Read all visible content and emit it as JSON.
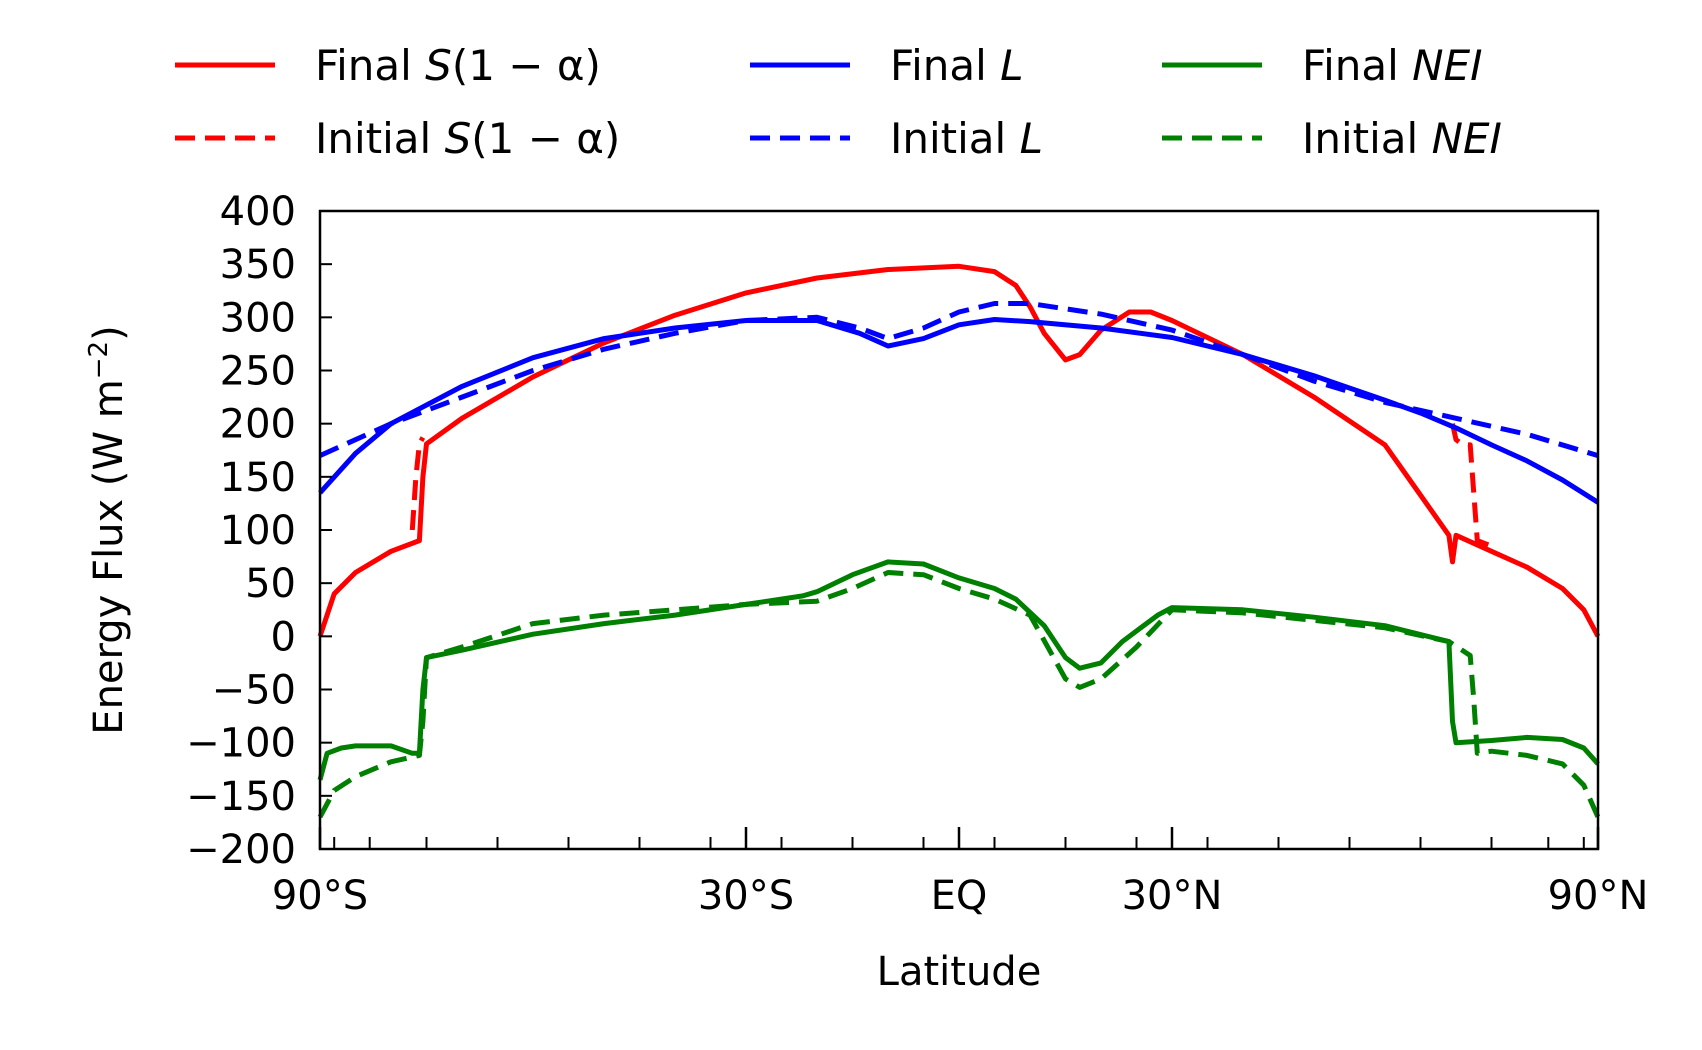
{
  "chart_data": {
    "type": "line",
    "title": "",
    "xlabel": "Latitude",
    "ylabel": "Energy Flux (W m",
    "ylabel_exp": "−2",
    "ylabel_end": ")",
    "xlim": [
      -90,
      90
    ],
    "ylim": [
      -200,
      400
    ],
    "x_ticklabels": [
      {
        "x": -90,
        "label": "90°S"
      },
      {
        "x": -30,
        "label": "30°S"
      },
      {
        "x": 0,
        "label": "EQ"
      },
      {
        "x": 30,
        "label": "30°N"
      },
      {
        "x": 90,
        "label": "90°N"
      }
    ],
    "y_ticks": [
      -200,
      -150,
      -100,
      -50,
      0,
      50,
      100,
      150,
      200,
      250,
      300,
      350,
      400
    ],
    "y_ticklabels": [
      "−200",
      "−150",
      "−100",
      "−50",
      "0",
      "50",
      "100",
      "150",
      "200",
      "250",
      "300",
      "350",
      "400"
    ],
    "legend_position": "top, above plot, 3 columns",
    "series": [
      {
        "name_plain": "Final ",
        "name_italic": "S",
        "name_rest": "(1 − α)",
        "color": "#ff0000",
        "dash": "solid",
        "x": [
          -90,
          -88,
          -85,
          -80,
          -76,
          -75.5,
          -75,
          -70,
          -60,
          -50,
          -40,
          -30,
          -20,
          -10,
          0,
          5,
          8,
          10,
          12,
          15,
          17,
          20,
          24,
          27,
          30,
          40,
          50,
          60,
          69,
          69.5,
          70,
          75,
          80,
          85,
          88,
          90
        ],
        "y": [
          0,
          40,
          60,
          80,
          90,
          150,
          181,
          205,
          244,
          276,
          302,
          323,
          337,
          345,
          348,
          343,
          330,
          310,
          285,
          260,
          265,
          288,
          305,
          305,
          297,
          265,
          225,
          180,
          95,
          70,
          95,
          80,
          65,
          45,
          25,
          0
        ]
      },
      {
        "name_plain": "Initial ",
        "name_italic": "S",
        "name_rest": "(1 − α)",
        "color": "#ff0000",
        "dash": "dashed",
        "x": [
          -77,
          -76.5,
          -76,
          -75.5
        ],
        "y": [
          100,
          150,
          181,
          187
        ],
        "x2": [
          69.5,
          70,
          71,
          72,
          73,
          75
        ],
        "y2": [
          200,
          185,
          180,
          180,
          90,
          85
        ]
      },
      {
        "name_plain": "Final ",
        "name_italic": "L",
        "name_rest": "",
        "color": "#0000ff",
        "dash": "solid",
        "x": [
          -90,
          -85,
          -80,
          -70,
          -60,
          -50,
          -40,
          -30,
          -20,
          -14,
          -10,
          -5,
          0,
          5,
          10,
          20,
          30,
          40,
          50,
          60,
          65,
          70,
          75,
          80,
          85,
          90
        ],
        "y": [
          135,
          172,
          200,
          235,
          262,
          280,
          290,
          297,
          297,
          285,
          273,
          280,
          293,
          298,
          296,
          290,
          281,
          265,
          245,
          222,
          210,
          196,
          180,
          165,
          147,
          126
        ]
      },
      {
        "name_plain": "Initial ",
        "name_italic": "L",
        "name_rest": "",
        "color": "#0000ff",
        "dash": "dashed",
        "x": [
          -90,
          -80,
          -70,
          -60,
          -50,
          -40,
          -30,
          -20,
          -14,
          -10,
          -5,
          0,
          5,
          10,
          20,
          30,
          40,
          50,
          60,
          70,
          80,
          90
        ],
        "y": [
          170,
          200,
          225,
          250,
          270,
          285,
          297,
          300,
          290,
          280,
          290,
          305,
          313,
          313,
          303,
          288,
          265,
          240,
          220,
          205,
          190,
          170
        ]
      },
      {
        "name_plain": "Final ",
        "name_italic": "NEI",
        "name_rest": "",
        "color": "#008000",
        "dash": "solid",
        "x": [
          -90,
          -89,
          -87,
          -85,
          -80,
          -77,
          -76,
          -75.5,
          -75,
          -70,
          -60,
          -50,
          -40,
          -30,
          -22,
          -20,
          -15,
          -10,
          -5,
          0,
          5,
          8,
          12,
          15,
          17,
          20,
          23,
          28,
          30,
          40,
          50,
          60,
          69,
          69.5,
          70,
          75,
          80,
          85,
          88,
          90
        ],
        "y": [
          -135,
          -110,
          -105,
          -103,
          -103,
          -110,
          -110,
          -50,
          -20,
          -13,
          2,
          12,
          20,
          30,
          38,
          42,
          58,
          70,
          68,
          55,
          45,
          35,
          10,
          -20,
          -30,
          -25,
          -5,
          20,
          27,
          25,
          18,
          10,
          -5,
          -80,
          -100,
          -98,
          -95,
          -97,
          -105,
          -120
        ]
      },
      {
        "name_plain": "Initial ",
        "name_italic": "NEI",
        "name_rest": "",
        "color": "#008000",
        "dash": "dashed",
        "x": [
          -90,
          -88,
          -85,
          -80,
          -76,
          -75.5,
          -75,
          -70,
          -60,
          -50,
          -40,
          -30,
          -20,
          -15,
          -10,
          -5,
          0,
          5,
          10,
          15,
          17,
          20,
          25,
          30,
          40,
          50,
          60,
          69,
          72,
          72.5,
          73,
          75,
          80,
          85,
          88,
          90
        ],
        "y": [
          -170,
          -145,
          -132,
          -118,
          -112,
          -80,
          -20,
          -10,
          12,
          20,
          25,
          30,
          33,
          45,
          60,
          58,
          45,
          35,
          20,
          -40,
          -48,
          -40,
          -10,
          25,
          22,
          15,
          8,
          -5,
          -18,
          -60,
          -110,
          -108,
          -112,
          -120,
          -140,
          -170
        ]
      }
    ]
  }
}
